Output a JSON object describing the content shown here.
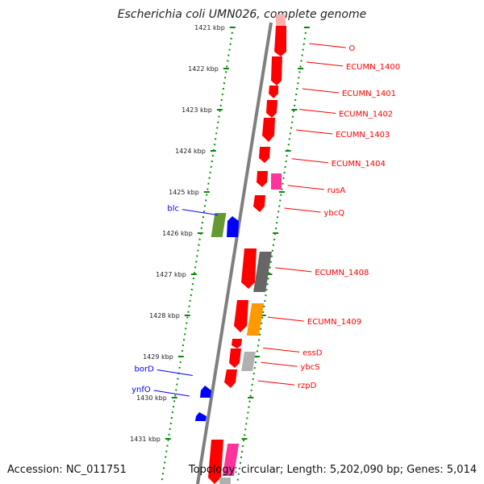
{
  "title": "Escherichia coli UMN026, complete genome",
  "footer": {
    "accession": "Accession: NC_011751",
    "summary": "Topology: circular; Length: 5,202,090 bp; Genes: 5,014"
  },
  "colors": {
    "forward": "#ff0000",
    "reverse": "#0000ff",
    "backbone": "#7f7f7f",
    "ticks": "#0a8a0a",
    "gray_gene": "#666666",
    "pink_gene": "#ff3399",
    "orange_gene": "#ff9900",
    "olive_gene": "#669933",
    "light_gray_gene": "#b0b0b0",
    "light_pink_gene": "#ffb0b0"
  },
  "scale": {
    "unit": "kbp",
    "ticks": [
      {
        "label": "1421 kbp",
        "kb": 1421
      },
      {
        "label": "1422 kbp",
        "kb": 1422
      },
      {
        "label": "1423 kbp",
        "kb": 1423
      },
      {
        "label": "1424 kbp",
        "kb": 1424
      },
      {
        "label": "1425 kbp",
        "kb": 1425
      },
      {
        "label": "1426 kbp",
        "kb": 1426
      },
      {
        "label": "1427 kbp",
        "kb": 1427
      },
      {
        "label": "1428 kbp",
        "kb": 1428
      },
      {
        "label": "1429 kbp",
        "kb": 1429
      },
      {
        "label": "1430 kbp",
        "kb": 1430
      },
      {
        "label": "1431 kbp",
        "kb": 1431
      }
    ]
  },
  "genes": {
    "forward_labels": [
      {
        "name": "O",
        "kb": 1421.45
      },
      {
        "name": "ECUMN_1400",
        "kb": 1421.9
      },
      {
        "name": "ECUMN_1401",
        "kb": 1422.55
      },
      {
        "name": "ECUMN_1402",
        "kb": 1423.05
      },
      {
        "name": "ECUMN_1403",
        "kb": 1423.55
      },
      {
        "name": "ECUMN_1404",
        "kb": 1424.25
      },
      {
        "name": "rusA",
        "kb": 1424.9
      },
      {
        "name": "ybcQ",
        "kb": 1425.45
      },
      {
        "name": "ECUMN_1408",
        "kb": 1426.9
      },
      {
        "name": "ECUMN_1409",
        "kb": 1428.1
      },
      {
        "name": "essD",
        "kb": 1428.85
      },
      {
        "name": "ybcS",
        "kb": 1429.2
      },
      {
        "name": "rzpD",
        "kb": 1429.65
      }
    ],
    "reverse_labels": [
      {
        "name": "blc",
        "kb": 1425.6
      },
      {
        "name": "borD",
        "kb": 1429.5
      },
      {
        "name": "ynfO",
        "kb": 1430.0
      }
    ]
  }
}
